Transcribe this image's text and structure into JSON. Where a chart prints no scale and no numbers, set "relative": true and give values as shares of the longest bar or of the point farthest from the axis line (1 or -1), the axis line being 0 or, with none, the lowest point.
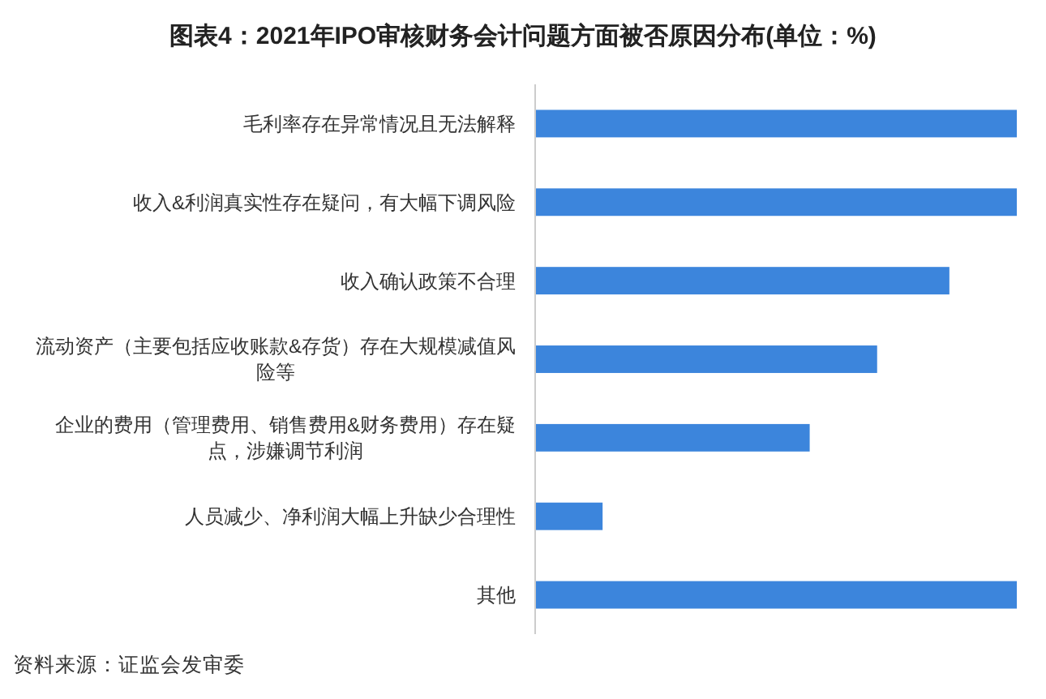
{
  "chart_data": {
    "type": "bar",
    "orientation": "horizontal",
    "relative": true,
    "title": "图表4：2021年IPO审核财务会计问题方面被否原因分布(单位：%)",
    "categories": [
      "毛利率存在异常情况且无法解释",
      "收入&利润真实性存在疑问，有大幅下调风险",
      "收入确认政策不合理",
      "流动资产（主要包括应收账款&存货）存在大规模减值风险等",
      "企业的费用（管理费用、销售费用&财务费用）存在疑点，涉嫌调节利润",
      "人员减少、净利润大幅上升缺少合理性",
      "其他"
    ],
    "values": [
      1,
      1,
      0.86,
      0.71,
      0.57,
      0.14,
      1
    ],
    "color": "#3c85dc",
    "annotations": [
      "资料来源：证监会发审委"
    ]
  }
}
